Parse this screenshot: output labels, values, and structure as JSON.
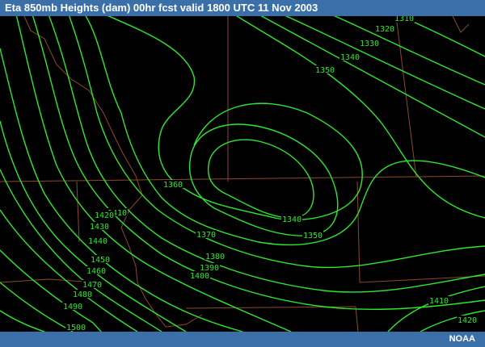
{
  "header": {
    "title": "Eta 850mb Heights (dam) 00hr fcst valid 1800 UTC  11 Nov 2003"
  },
  "footer": {
    "credit": "NOAA"
  },
  "colors": {
    "contour": "#2ee82e",
    "boundary": "#8b4a2b",
    "bar": "#3a6fa8",
    "background": "#000000"
  },
  "contour_labels": [
    "1310",
    "1320",
    "1330",
    "1340",
    "1350",
    "1360",
    "1340",
    "1350",
    "1370",
    "1380",
    "1390",
    "1400",
    "1410",
    "1420",
    "1430",
    "1440",
    "1450",
    "1460",
    "1470",
    "1480",
    "1490",
    "1500",
    "1410",
    "1420"
  ]
}
